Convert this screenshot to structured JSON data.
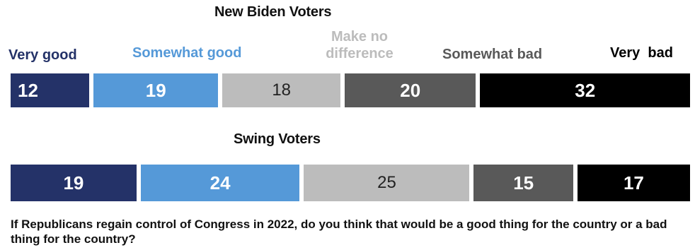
{
  "chart_data": [
    {
      "type": "bar",
      "title": "New Biden Voters",
      "stacked": true,
      "orientation": "horizontal",
      "categories": [
        "Very good",
        "Somewhat good",
        "Make no difference",
        "Somewhat bad",
        "Very  bad"
      ],
      "values": [
        12,
        19,
        18,
        20,
        32
      ]
    },
    {
      "type": "bar",
      "title": "Swing Voters",
      "stacked": true,
      "orientation": "horizontal",
      "categories": [
        "Very good",
        "Somewhat good",
        "Make no difference",
        "Somewhat bad",
        "Very  bad"
      ],
      "values": [
        19,
        24,
        25,
        15,
        17
      ]
    }
  ],
  "legend": [
    {
      "label": "Very good",
      "color": "#243268"
    },
    {
      "label": "Somewhat good",
      "color": "#5599d8"
    },
    {
      "label_line1": "Make no",
      "label_line2": "difference",
      "color": "#bcbcbc"
    },
    {
      "label": "Somewhat bad",
      "color": "#595959"
    },
    {
      "label": "Very  bad",
      "color": "#000000"
    }
  ],
  "segment_text_colors": [
    "#ffffff",
    "#ffffff",
    "#222222",
    "#ffffff",
    "#ffffff"
  ],
  "legend_text_colors": [
    "#243268",
    "#5599d8",
    "#bcbcbc",
    "#595959",
    "#000000"
  ],
  "question": "If Republicans regain control of Congress in 2022, do you think that would be a good thing for the country or a bad thing for the country?"
}
